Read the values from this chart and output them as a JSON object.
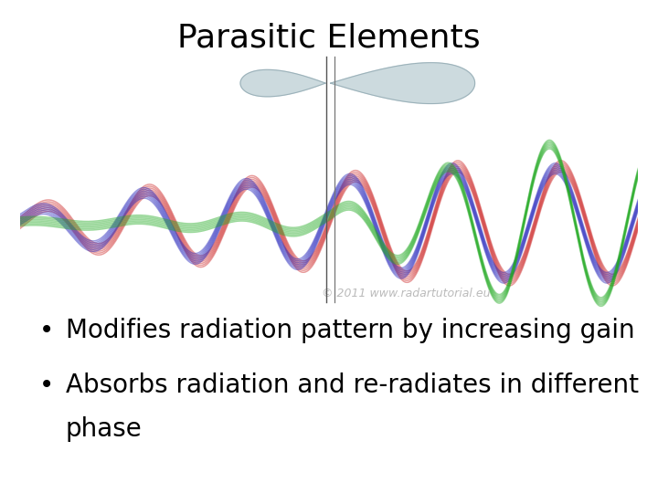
{
  "title": "Parasitic Elements",
  "title_fontsize": 26,
  "background_color": "#ffffff",
  "bullet1": "Modifies radiation pattern by increasing gain",
  "bullet2_line1": "Absorbs radiation and re-radiates in different",
  "bullet2_line2": "phase",
  "bullet_fontsize": 20,
  "copyright_text": "© 2011 www.radartutorial.eu",
  "copyright_fontsize": 9,
  "red_color": "#cc2222",
  "blue_color": "#2222bb",
  "green_color": "#22aa22",
  "wave_alpha": 0.45,
  "lobe_color": "#c5d5da",
  "lobe_edge_color": "#9ab0b8"
}
